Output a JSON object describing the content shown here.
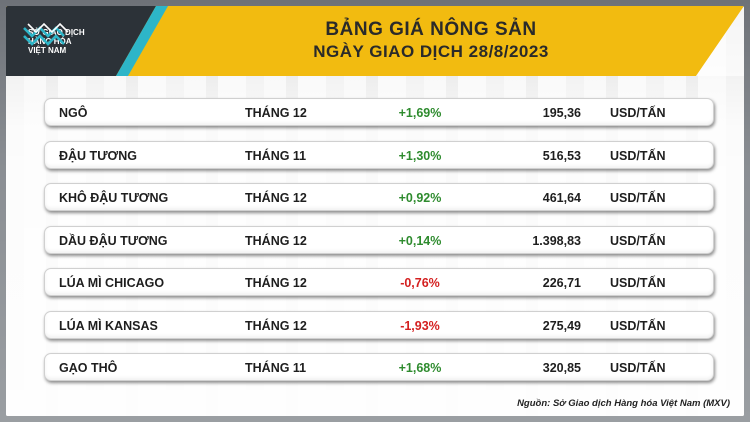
{
  "header": {
    "logo_lines": [
      "SỞ GIAO DỊCH",
      "HÀNG HÓA",
      "VIỆT NAM"
    ],
    "title_line1": "BẢNG GIÁ NÔNG SẢN",
    "title_line2": "NGÀY GIAO DỊCH 28/8/2023"
  },
  "colors": {
    "banner_yellow": "#f2bb10",
    "banner_dark": "#2c3238",
    "accent_teal": "#2db5c8",
    "positive": "#2e8b2e",
    "negative": "#d42020"
  },
  "rows": [
    {
      "name": "NGÔ",
      "month": "THÁNG 12",
      "change": "+1,69%",
      "price": "195,36",
      "unit": "USD/TẤN"
    },
    {
      "name": "ĐẬU TƯƠNG",
      "month": "THÁNG 11",
      "change": "+1,30%",
      "price": "516,53",
      "unit": "USD/TẤN"
    },
    {
      "name": "KHÔ ĐẬU TƯƠNG",
      "month": "THÁNG 12",
      "change": "+0,92%",
      "price": "461,64",
      "unit": "USD/TẤN"
    },
    {
      "name": "DẦU ĐẬU TƯƠNG",
      "month": "THÁNG 12",
      "change": "+0,14%",
      "price": "1.398,83",
      "unit": "USD/TẤN"
    },
    {
      "name": "LÚA MÌ CHICAGO",
      "month": "THÁNG 12",
      "change": "-0,76%",
      "price": "226,71",
      "unit": "USD/TẤN"
    },
    {
      "name": "LÚA MÌ KANSAS",
      "month": "THÁNG 12",
      "change": "-1,93%",
      "price": "275,49",
      "unit": "USD/TẤN"
    },
    {
      "name": "GẠO THÔ",
      "month": "THÁNG 11",
      "change": "+1,68%",
      "price": "320,85",
      "unit": "USD/TẤN"
    }
  ],
  "footer": {
    "source": "Nguồn: Sở Giao dịch Hàng hóa Việt Nam (MXV)"
  }
}
